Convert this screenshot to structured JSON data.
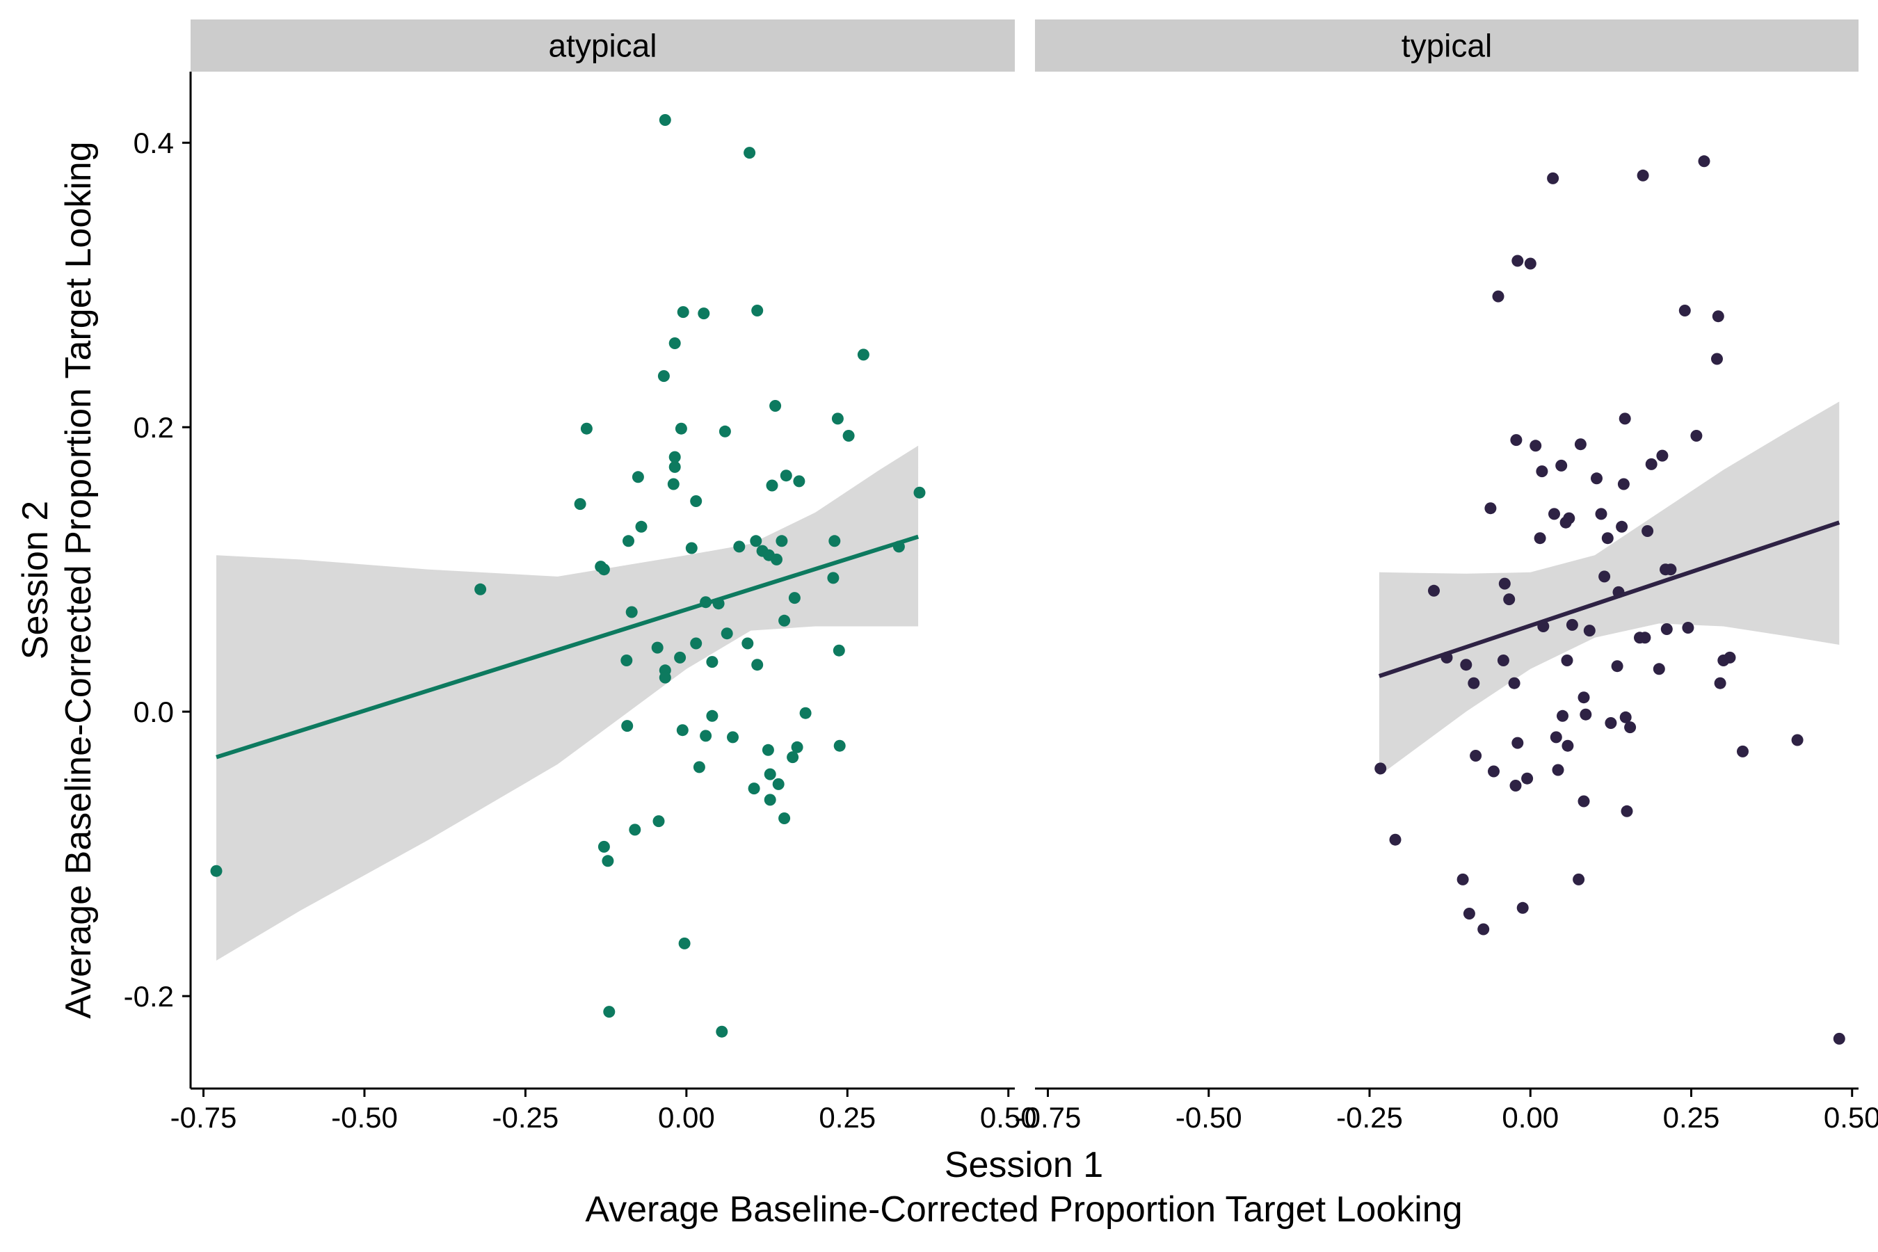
{
  "chart_data": {
    "type": "scatter",
    "xlabel": [
      "Session 1",
      "Average Baseline-Corrected Proportion Target Looking"
    ],
    "ylabel": [
      "Session 2",
      "Average Baseline-Corrected Proportion Target Looking"
    ],
    "xlim": [
      -0.77,
      0.51
    ],
    "ylim": [
      -0.265,
      0.45
    ],
    "x_ticks": [
      -0.75,
      -0.5,
      -0.25,
      0.0,
      0.25,
      0.5
    ],
    "x_tick_labels": [
      "-0.75",
      "-0.50",
      "-0.25",
      "0.00",
      "0.25",
      "0.50"
    ],
    "y_ticks": [
      -0.2,
      0.0,
      0.2,
      0.4
    ],
    "y_tick_labels": [
      "-0.2",
      "0.0",
      "0.2",
      "0.4"
    ],
    "grid": false,
    "legend": "none",
    "band_color": "#cccccc",
    "panels": [
      {
        "facet": "atypical",
        "color": "#0d7a5f",
        "fit": {
          "x_range": [
            -0.73,
            0.36
          ],
          "y_start": -0.032,
          "y_end": 0.123
        },
        "ci_band": {
          "x": [
            -0.73,
            -0.6,
            -0.4,
            -0.2,
            0.0,
            0.1,
            0.2,
            0.3,
            0.36
          ],
          "lower": [
            -0.175,
            -0.14,
            -0.09,
            -0.037,
            0.03,
            0.057,
            0.06,
            0.06,
            0.06
          ],
          "upper": [
            0.11,
            0.107,
            0.1,
            0.095,
            0.11,
            0.118,
            0.14,
            0.17,
            0.187
          ]
        },
        "points": [
          [
            -0.73,
            -0.112
          ],
          [
            -0.32,
            0.086
          ],
          [
            -0.165,
            0.146
          ],
          [
            -0.155,
            0.199
          ],
          [
            -0.133,
            0.102
          ],
          [
            -0.128,
            0.1
          ],
          [
            -0.128,
            -0.095
          ],
          [
            -0.122,
            -0.105
          ],
          [
            -0.12,
            -0.211
          ],
          [
            -0.093,
            0.036
          ],
          [
            -0.092,
            -0.01
          ],
          [
            -0.09,
            0.12
          ],
          [
            -0.085,
            0.07
          ],
          [
            -0.08,
            -0.083
          ],
          [
            -0.075,
            0.165
          ],
          [
            -0.07,
            0.13
          ],
          [
            -0.045,
            0.045
          ],
          [
            -0.043,
            -0.077
          ],
          [
            -0.035,
            0.236
          ],
          [
            -0.033,
            0.416
          ],
          [
            -0.033,
            0.029
          ],
          [
            -0.033,
            0.024
          ],
          [
            -0.02,
            0.16
          ],
          [
            -0.018,
            0.172
          ],
          [
            -0.018,
            0.179
          ],
          [
            -0.018,
            0.259
          ],
          [
            -0.01,
            0.038
          ],
          [
            -0.008,
            0.199
          ],
          [
            -0.005,
            0.281
          ],
          [
            -0.006,
            -0.013
          ],
          [
            -0.003,
            -0.163
          ],
          [
            0.008,
            0.115
          ],
          [
            0.015,
            0.048
          ],
          [
            0.015,
            0.148
          ],
          [
            0.02,
            -0.039
          ],
          [
            0.027,
            0.28
          ],
          [
            0.03,
            0.077
          ],
          [
            0.03,
            -0.017
          ],
          [
            0.04,
            -0.003
          ],
          [
            0.04,
            0.035
          ],
          [
            0.05,
            0.076
          ],
          [
            0.055,
            -0.225
          ],
          [
            0.06,
            0.197
          ],
          [
            0.063,
            0.055
          ],
          [
            0.072,
            -0.018
          ],
          [
            0.082,
            0.116
          ],
          [
            0.095,
            0.048
          ],
          [
            0.098,
            0.393
          ],
          [
            0.105,
            -0.054
          ],
          [
            0.108,
            0.12
          ],
          [
            0.11,
            0.282
          ],
          [
            0.11,
            0.033
          ],
          [
            0.118,
            0.113
          ],
          [
            0.127,
            -0.027
          ],
          [
            0.128,
            0.11
          ],
          [
            0.13,
            -0.044
          ],
          [
            0.13,
            -0.062
          ],
          [
            0.133,
            0.159
          ],
          [
            0.138,
            0.215
          ],
          [
            0.14,
            0.107
          ],
          [
            0.143,
            -0.051
          ],
          [
            0.148,
            0.12
          ],
          [
            0.152,
            0.064
          ],
          [
            0.152,
            -0.075
          ],
          [
            0.155,
            0.166
          ],
          [
            0.165,
            -0.032
          ],
          [
            0.168,
            0.08
          ],
          [
            0.172,
            -0.025
          ],
          [
            0.175,
            0.162
          ],
          [
            0.185,
            -0.001
          ],
          [
            0.228,
            0.094
          ],
          [
            0.23,
            0.12
          ],
          [
            0.235,
            0.206
          ],
          [
            0.237,
            0.043
          ],
          [
            0.238,
            -0.024
          ],
          [
            0.252,
            0.194
          ],
          [
            0.275,
            0.251
          ],
          [
            0.33,
            0.116
          ],
          [
            0.362,
            0.154
          ]
        ]
      },
      {
        "facet": "typical",
        "color": "#2e2244",
        "fit": {
          "x_range": [
            -0.235,
            0.48
          ],
          "y_start": 0.025,
          "y_end": 0.133
        },
        "ci_band": {
          "x": [
            -0.235,
            -0.1,
            0.0,
            0.1,
            0.2,
            0.3,
            0.4,
            0.48
          ],
          "lower": [
            -0.045,
            0.0,
            0.03,
            0.052,
            0.062,
            0.06,
            0.053,
            0.047
          ],
          "upper": [
            0.098,
            0.097,
            0.098,
            0.11,
            0.14,
            0.17,
            0.197,
            0.218
          ]
        },
        "points": [
          [
            -0.233,
            -0.04
          ],
          [
            -0.21,
            -0.09
          ],
          [
            -0.15,
            0.085
          ],
          [
            -0.13,
            0.038
          ],
          [
            -0.105,
            -0.118
          ],
          [
            -0.1,
            0.033
          ],
          [
            -0.095,
            -0.142
          ],
          [
            -0.088,
            0.02
          ],
          [
            -0.085,
            -0.031
          ],
          [
            -0.073,
            -0.153
          ],
          [
            -0.062,
            0.143
          ],
          [
            -0.057,
            -0.042
          ],
          [
            -0.05,
            0.292
          ],
          [
            -0.042,
            0.036
          ],
          [
            -0.04,
            0.09
          ],
          [
            -0.033,
            0.079
          ],
          [
            -0.025,
            0.02
          ],
          [
            -0.023,
            -0.052
          ],
          [
            -0.022,
            0.191
          ],
          [
            -0.02,
            -0.022
          ],
          [
            -0.02,
            0.317
          ],
          [
            -0.012,
            -0.138
          ],
          [
            -0.005,
            -0.047
          ],
          [
            0.0,
            0.315
          ],
          [
            0.008,
            0.187
          ],
          [
            0.015,
            0.122
          ],
          [
            0.018,
            0.169
          ],
          [
            0.02,
            0.06
          ],
          [
            0.035,
            0.375
          ],
          [
            0.037,
            0.139
          ],
          [
            0.04,
            -0.018
          ],
          [
            0.043,
            -0.041
          ],
          [
            0.048,
            0.173
          ],
          [
            0.05,
            -0.003
          ],
          [
            0.055,
            0.133
          ],
          [
            0.057,
            0.036
          ],
          [
            0.058,
            -0.024
          ],
          [
            0.06,
            0.136
          ],
          [
            0.065,
            0.061
          ],
          [
            0.075,
            -0.118
          ],
          [
            0.078,
            0.188
          ],
          [
            0.083,
            0.01
          ],
          [
            0.083,
            -0.063
          ],
          [
            0.086,
            -0.002
          ],
          [
            0.092,
            0.057
          ],
          [
            0.103,
            0.164
          ],
          [
            0.11,
            0.139
          ],
          [
            0.115,
            0.095
          ],
          [
            0.12,
            0.122
          ],
          [
            0.125,
            -0.008
          ],
          [
            0.135,
            0.032
          ],
          [
            0.137,
            0.084
          ],
          [
            0.142,
            0.13
          ],
          [
            0.145,
            0.16
          ],
          [
            0.147,
            0.206
          ],
          [
            0.148,
            -0.004
          ],
          [
            0.15,
            -0.07
          ],
          [
            0.155,
            -0.011
          ],
          [
            0.17,
            0.052
          ],
          [
            0.175,
            0.377
          ],
          [
            0.178,
            0.052
          ],
          [
            0.182,
            0.127
          ],
          [
            0.188,
            0.174
          ],
          [
            0.2,
            0.03
          ],
          [
            0.205,
            0.18
          ],
          [
            0.21,
            0.1
          ],
          [
            0.212,
            0.058
          ],
          [
            0.218,
            0.1
          ],
          [
            0.24,
            0.282
          ],
          [
            0.245,
            0.059
          ],
          [
            0.258,
            0.194
          ],
          [
            0.27,
            0.387
          ],
          [
            0.29,
            0.248
          ],
          [
            0.292,
            0.278
          ],
          [
            0.295,
            0.02
          ],
          [
            0.3,
            0.036
          ],
          [
            0.31,
            0.038
          ],
          [
            0.33,
            -0.028
          ],
          [
            0.415,
            -0.02
          ],
          [
            0.48,
            -0.23
          ]
        ]
      }
    ]
  }
}
